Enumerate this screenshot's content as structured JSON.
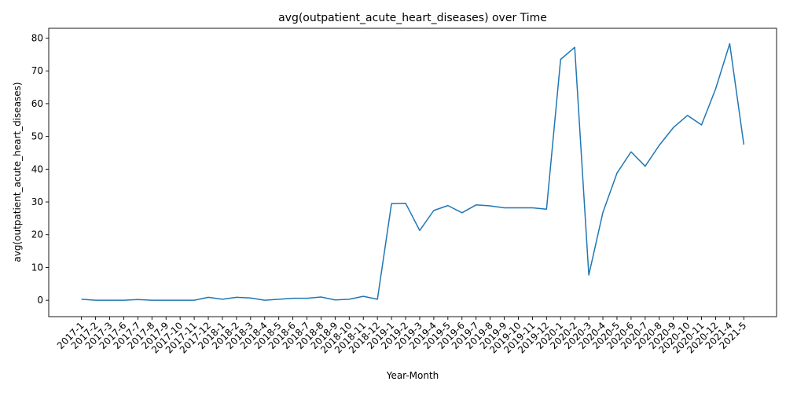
{
  "chart_data": {
    "type": "line",
    "title": "avg(outpatient_acute_heart_diseases) over Time",
    "xlabel": "Year-Month",
    "ylabel": "avg(outpatient_acute_heart_diseases)",
    "ylim": [
      -5,
      83
    ],
    "yticks": [
      0,
      10,
      20,
      30,
      40,
      50,
      60,
      70,
      80
    ],
    "grid": false,
    "legend": "none",
    "line_color": "#1f77b4",
    "categories": [
      "2017-1",
      "2017-2",
      "2017-3",
      "2017-6",
      "2017-7",
      "2017-8",
      "2017-9",
      "2017-10",
      "2017-11",
      "2017-12",
      "2018-1",
      "2018-2",
      "2018-3",
      "2018-4",
      "2018-5",
      "2018-6",
      "2018-7",
      "2018-8",
      "2018-9",
      "2018-10",
      "2018-11",
      "2018-12",
      "2019-1",
      "2019-2",
      "2019-3",
      "2019-4",
      "2019-5",
      "2019-6",
      "2019-7",
      "2019-8",
      "2019-9",
      "2019-10",
      "2019-11",
      "2019-12",
      "2020-1",
      "2020-2",
      "2020-3",
      "2020-4",
      "2020-5",
      "2020-6",
      "2020-7",
      "2020-8",
      "2020-9",
      "2020-10",
      "2020-11",
      "2020-12",
      "2021-4",
      "2021-5"
    ],
    "series": [
      {
        "values": [
          0.3,
          0.0,
          0.0,
          0.0,
          0.2,
          0.0,
          0.0,
          0.0,
          0.0,
          0.9,
          0.3,
          0.9,
          0.7,
          0.0,
          0.3,
          0.6,
          0.6,
          1.0,
          0.1,
          0.3,
          1.2,
          0.3,
          29.5,
          29.6,
          21.3,
          27.4,
          28.9,
          26.7,
          29.1,
          28.8,
          28.2,
          28.2,
          28.2,
          27.8,
          73.5,
          77.2,
          7.7,
          26.8,
          38.8,
          45.3,
          40.9,
          47.3,
          52.7,
          56.4,
          53.5,
          64.5,
          78.3,
          47.5
        ]
      }
    ]
  }
}
